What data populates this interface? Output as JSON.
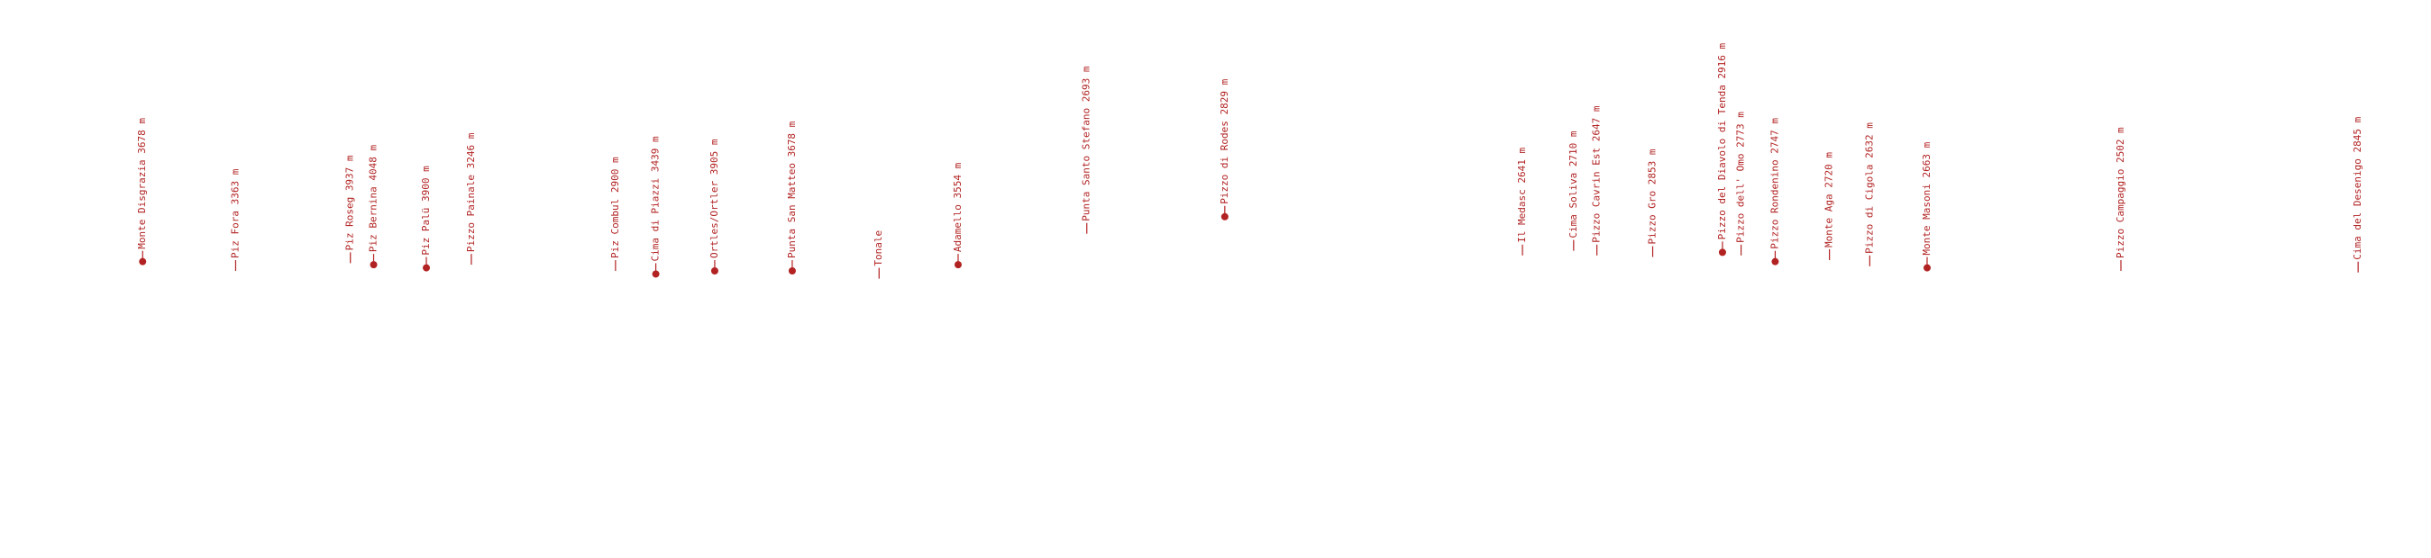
{
  "peaks": [
    "Monte Disgrazia 3678 m",
    "Piz Fora 3363 m",
    "Piz Roseg 3937 m",
    "Piz Bernina 4048 m",
    "Piz Palü 3900 m",
    "Pizzo Painale 3246 m",
    "Piz Combul 2900 m",
    "Cima di Piazzi 3439 m",
    "Ortles/Ortler 3905 m",
    "Punta San Matteo 3678 m",
    "Tonale",
    "Adamello 3554 m",
    "Punta Santo Stefano 2693 m",
    "Pizzo di Rodes 2829 m",
    "Il Medasc 2641 m",
    "Cima Soliva 2710 m",
    "Pizzo Cavrin Est 2647 m",
    "Pizzo Gro 2853 m",
    "Pizzo del Diavolo di Tenda 2916 m",
    "Pizzo dell' Omo 2773 m",
    "Pizzo Rondenino 2747 m",
    "Monte Aga 2720 m",
    "Pizzo di Cigola 2632 m",
    "Monte Masoni 2663 m",
    "Pizzo Campaggio 2502 m",
    "Cima del Desenigo 2845 m"
  ]
}
